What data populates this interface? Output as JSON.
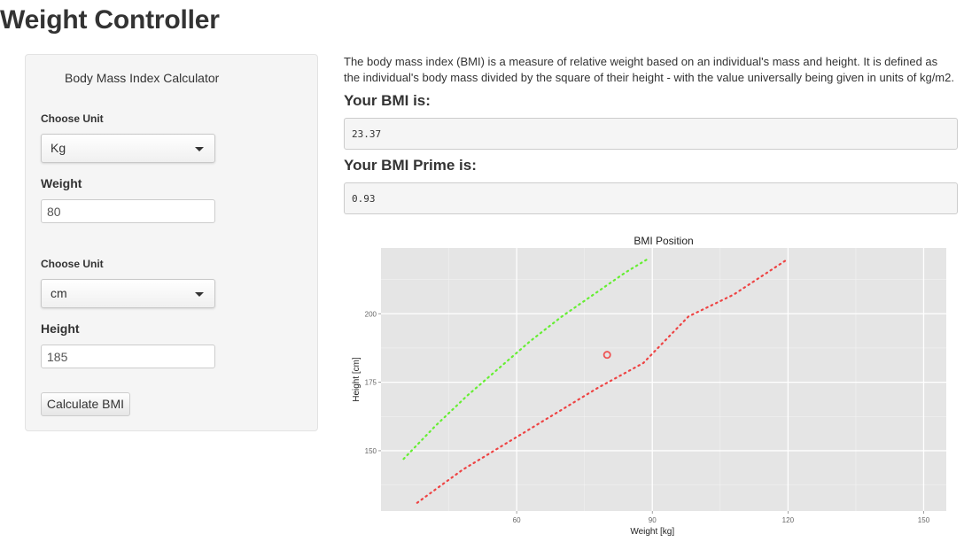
{
  "page": {
    "title": "Weight Controller"
  },
  "sidebar": {
    "title": "Body Mass Index Calculator",
    "weight_unit": {
      "label": "Choose Unit",
      "selected": "Kg"
    },
    "weight": {
      "label": "Weight",
      "value": "80"
    },
    "height_unit": {
      "label": "Choose Unit",
      "selected": "cm"
    },
    "height": {
      "label": "Height",
      "value": "185"
    },
    "calculate_label": "Calculate BMI"
  },
  "main": {
    "intro": "The body mass index (BMI) is a measure of relative weight based on an individual's mass and height. It is defined as the individual's body mass divided by the square of their height - with the value universally being given in units of kg/m2.",
    "bmi_heading": "Your BMI is:",
    "bmi_value": "23.37",
    "prime_heading": "Your BMI Prime is:",
    "prime_value": "0.93"
  },
  "chart_data": {
    "type": "scatter",
    "title": "BMI Position",
    "xlabel": "Weight [kg]",
    "ylabel": "Height [cm]",
    "xlim": [
      30,
      155
    ],
    "ylim": [
      128,
      224
    ],
    "x_ticks": [
      60,
      90,
      120,
      150
    ],
    "y_ticks": [
      150,
      175,
      200
    ],
    "grid": true,
    "colors": {
      "panel": "#e5e5e5",
      "grid": "#ffffff",
      "lower_line": "#66ee33",
      "upper_line": "#ee4444",
      "point": "#ee5555"
    },
    "series": [
      {
        "style": "dotted",
        "color": "#66ee33",
        "x": [
          35,
          42,
          49,
          56,
          63,
          70,
          77,
          84,
          89
        ],
        "y": [
          147,
          159,
          170,
          180,
          190,
          199,
          207,
          215,
          220
        ]
      },
      {
        "style": "dotted",
        "color": "#ee4444",
        "x": [
          38,
          48,
          58,
          68,
          78,
          88,
          98,
          108,
          120
        ],
        "y": [
          131,
          143,
          153,
          163,
          173,
          182,
          199,
          207,
          220
        ]
      },
      {
        "style": "point",
        "color": "#ee5555",
        "x": [
          80
        ],
        "y": [
          185
        ]
      }
    ]
  }
}
